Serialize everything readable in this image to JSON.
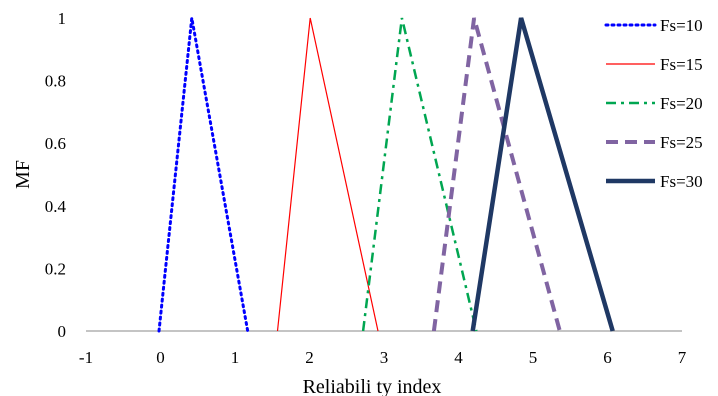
{
  "chart_data": {
    "type": "line",
    "title": "",
    "xlabel": "Reliabili ty index",
    "ylabel": "MF",
    "xlim": [
      -1,
      7
    ],
    "ylim": [
      0,
      1
    ],
    "x_ticks": [
      "-1",
      "0",
      "1",
      "2",
      "3",
      "4",
      "5",
      "6",
      "7"
    ],
    "y_ticks": [
      "0",
      "0.2",
      "0.4",
      "0.6",
      "0.8",
      "1"
    ],
    "grid": false,
    "legend_position": "right",
    "series": [
      {
        "name": "Fs=10",
        "color": "#0000ff",
        "style": "dotted",
        "points": [
          [
            -0.02,
            0
          ],
          [
            0.42,
            1
          ],
          [
            1.17,
            0
          ]
        ]
      },
      {
        "name": "Fs=15",
        "color": "#ff0000",
        "style": "solid-thin",
        "points": [
          [
            1.57,
            0
          ],
          [
            2.01,
            1
          ],
          [
            2.92,
            0
          ]
        ]
      },
      {
        "name": "Fs=20",
        "color": "#00a651",
        "style": "dash-dot",
        "points": [
          [
            2.72,
            0
          ],
          [
            3.24,
            1
          ],
          [
            4.24,
            0
          ]
        ]
      },
      {
        "name": "Fs=25",
        "color": "#8064a2",
        "style": "dashed",
        "points": [
          [
            3.67,
            0
          ],
          [
            4.21,
            1
          ],
          [
            5.36,
            0
          ]
        ]
      },
      {
        "name": "Fs=30",
        "color": "#1f3864",
        "style": "solid-thick",
        "points": [
          [
            4.19,
            0
          ],
          [
            4.84,
            1
          ],
          [
            6.07,
            0
          ]
        ]
      }
    ]
  }
}
